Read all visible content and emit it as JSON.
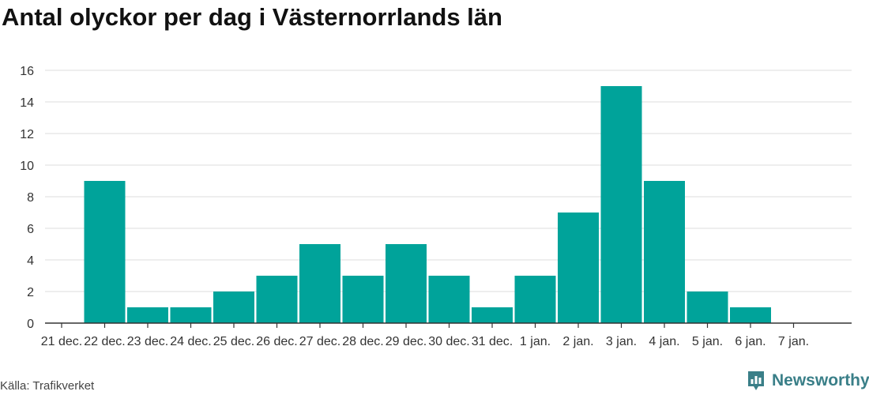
{
  "chart_data": {
    "type": "bar",
    "title": "Antal olyckor per dag i Västernorrlands län",
    "categories": [
      "21 dec.",
      "22 dec.",
      "23 dec.",
      "24 dec.",
      "25 dec.",
      "26 dec.",
      "27 dec.",
      "28 dec.",
      "29 dec.",
      "30 dec.",
      "31 dec.",
      "1 jan.",
      "2 jan.",
      "3 jan.",
      "4 jan.",
      "5 jan.",
      "6 jan.",
      "7 jan."
    ],
    "values": [
      0,
      9,
      1,
      1,
      2,
      3,
      5,
      3,
      5,
      3,
      1,
      3,
      7,
      15,
      9,
      2,
      1,
      0
    ],
    "ylim": [
      0,
      16
    ],
    "yticks": [
      0,
      2,
      4,
      6,
      8,
      10,
      12,
      14,
      16
    ],
    "grid": true,
    "bar_color": "#00a39a",
    "xlabel": "",
    "ylabel": ""
  },
  "footer": {
    "source": "Källa: Trafikverket",
    "brand": "Newsworthy",
    "brand_color": "#3a7f88",
    "brand_icon": "newsworthy-logo-icon"
  }
}
